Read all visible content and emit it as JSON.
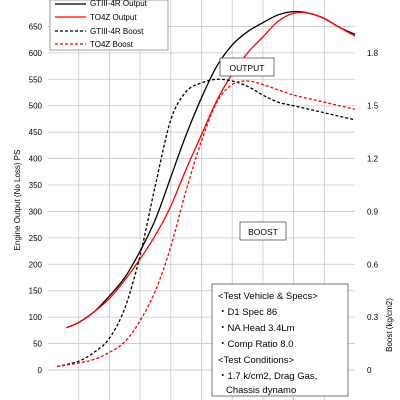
{
  "chart_data": {
    "type": "line",
    "ylabel": "Engine Output (No Loss) PS",
    "y2label": "Boost (kg/cm2)",
    "ylim": [
      0,
      700
    ],
    "y2lim": [
      0,
      2.1
    ],
    "y_ticks": [
      "0",
      "50",
      "100",
      "150",
      "200",
      "250",
      "300",
      "350",
      "400",
      "450",
      "500",
      "550",
      "600",
      "650"
    ],
    "y2_ticks": [
      "0",
      "0.3",
      "0.6",
      "0.9",
      "1.2",
      "1.5",
      "1.8"
    ],
    "grid": true,
    "xlim": [
      0,
      10
    ],
    "series": [
      {
        "name": "GTIII-4R Output",
        "axis": "left",
        "color": "#000000",
        "dash": "solid",
        "x": [
          0.6,
          1,
          1.5,
          2,
          2.5,
          3,
          3.5,
          4,
          4.5,
          5,
          5.5,
          6,
          6.5,
          7,
          7.5,
          8,
          8.5,
          9,
          9.5,
          10
        ],
        "y": [
          80,
          90,
          110,
          140,
          175,
          225,
          285,
          365,
          445,
          515,
          575,
          615,
          640,
          657,
          672,
          678,
          675,
          665,
          648,
          635
        ]
      },
      {
        "name": "TO4Z Output",
        "axis": "left",
        "color": "#ff0000",
        "dash": "solid",
        "x": [
          0.6,
          1,
          1.5,
          2,
          2.5,
          3,
          3.5,
          4,
          4.5,
          5,
          5.5,
          6,
          6.5,
          7,
          7.5,
          8,
          8.5,
          9,
          9.5,
          10
        ],
        "y": [
          80,
          90,
          110,
          135,
          170,
          210,
          255,
          310,
          380,
          445,
          510,
          560,
          600,
          630,
          660,
          675,
          675,
          665,
          648,
          632
        ]
      },
      {
        "name": "GTIII-4R Boost",
        "axis": "right",
        "color": "#000000",
        "dash": "dashed",
        "x": [
          0.3,
          1,
          1.5,
          2,
          2.5,
          3,
          3.5,
          4,
          4.5,
          5,
          5.5,
          6,
          6.5,
          7,
          7.5,
          8,
          8.5,
          9,
          9.5,
          10
        ],
        "y": [
          0.02,
          0.05,
          0.1,
          0.18,
          0.35,
          0.65,
          1.05,
          1.42,
          1.58,
          1.63,
          1.65,
          1.64,
          1.61,
          1.56,
          1.52,
          1.5,
          1.48,
          1.46,
          1.44,
          1.42
        ]
      },
      {
        "name": "TO4Z Boost",
        "axis": "right",
        "color": "#ff0000",
        "dash": "dashed",
        "x": [
          0.3,
          1,
          1.5,
          2,
          2.5,
          3,
          3.5,
          4,
          4.5,
          5,
          5.5,
          6,
          6.5,
          7,
          7.5,
          8,
          8.5,
          9,
          9.5,
          10
        ],
        "y": [
          0.02,
          0.04,
          0.06,
          0.1,
          0.16,
          0.28,
          0.45,
          0.7,
          1.02,
          1.3,
          1.52,
          1.62,
          1.64,
          1.62,
          1.59,
          1.56,
          1.54,
          1.52,
          1.5,
          1.48
        ]
      }
    ],
    "legend": {
      "entries": [
        "GTIII-4R Output",
        "TO4Z Output",
        "GTIII-4R Boost",
        "TO4Z Boost"
      ]
    },
    "annotations": {
      "output_label": "OUTPUT",
      "boost_label": "BOOST"
    },
    "specs_box": [
      "<Test Vehicle & Specs>",
      "・D1 Spec 86",
      "・NA Head 3.4Lm",
      "・Comp Ratio 8.0",
      "<Test Conditions>",
      "・1.7 k/cm2, Drag Gas,",
      "Chassis dynamo"
    ]
  }
}
